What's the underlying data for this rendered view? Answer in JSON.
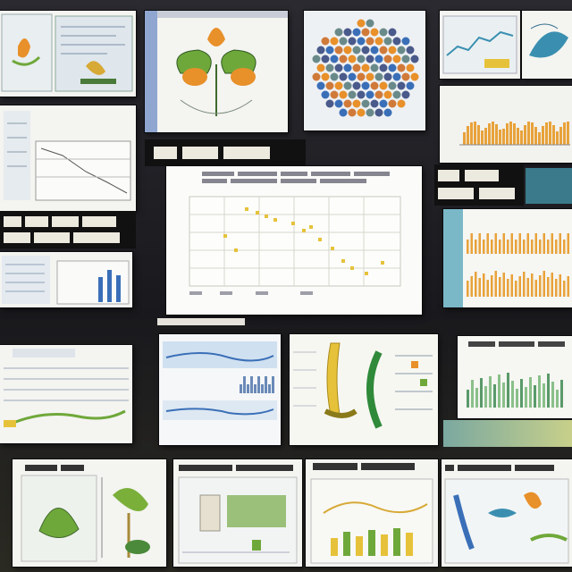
{
  "board": {
    "panels": [
      {
        "id": "seed-diagram",
        "illustration": "seed-diagram-icon"
      },
      {
        "id": "flower-illustration",
        "illustration": "flower-icon"
      },
      {
        "id": "cell-mosaic",
        "illustration": "cell-mosaic-icon"
      },
      {
        "id": "line-chart-panel",
        "illustration": "line-chart-icon"
      },
      {
        "id": "scatter-chart-panel",
        "illustration": "scatter-chart-icon"
      },
      {
        "id": "bar-chart-panel",
        "illustration": "bar-chart-icon"
      },
      {
        "id": "plant-stem-panel",
        "illustration": "plant-stem-icon"
      },
      {
        "id": "leaf-panel",
        "illustration": "leaf-icon"
      }
    ]
  },
  "colors": {
    "board_bg": "#1e1e24",
    "panel_bg": "#f4f4f1",
    "accent_orange": "#e8902a",
    "accent_green": "#6fa83a",
    "accent_blue": "#3a6fb8",
    "accent_yellow": "#e6c23a"
  }
}
